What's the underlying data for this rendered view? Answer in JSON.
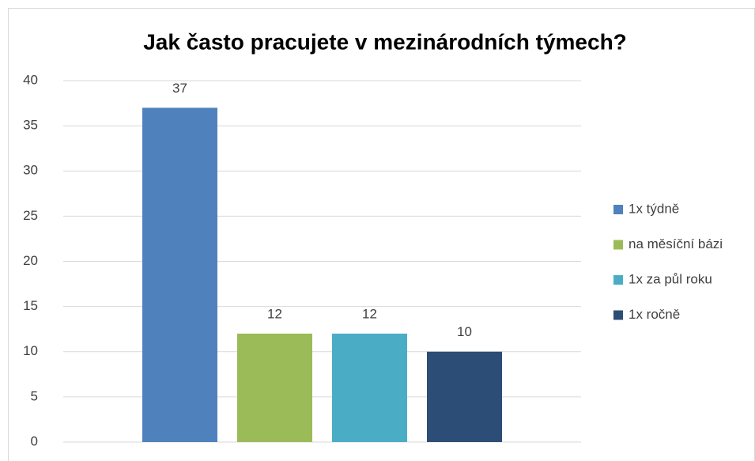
{
  "chart_data": {
    "type": "bar",
    "title": "Jak často pracujete v mezinárodních týmech?",
    "categories": [
      null
    ],
    "series": [
      {
        "name": "1x týdně",
        "color": "#4f81bd",
        "values": [
          37
        ]
      },
      {
        "name": "na měsíční bázi",
        "color": "#9bbb59",
        "values": [
          12
        ]
      },
      {
        "name": "1x za půl roku",
        "color": "#4bacc6",
        "values": [
          12
        ]
      },
      {
        "name": "1x ročně",
        "color": "#2c4d75",
        "values": [
          10
        ]
      }
    ],
    "ylim": [
      0,
      40
    ],
    "yticks": [
      0,
      5,
      10,
      15,
      20,
      25,
      30,
      35,
      40
    ],
    "grid": true,
    "legend": "right",
    "data_labels": true
  }
}
